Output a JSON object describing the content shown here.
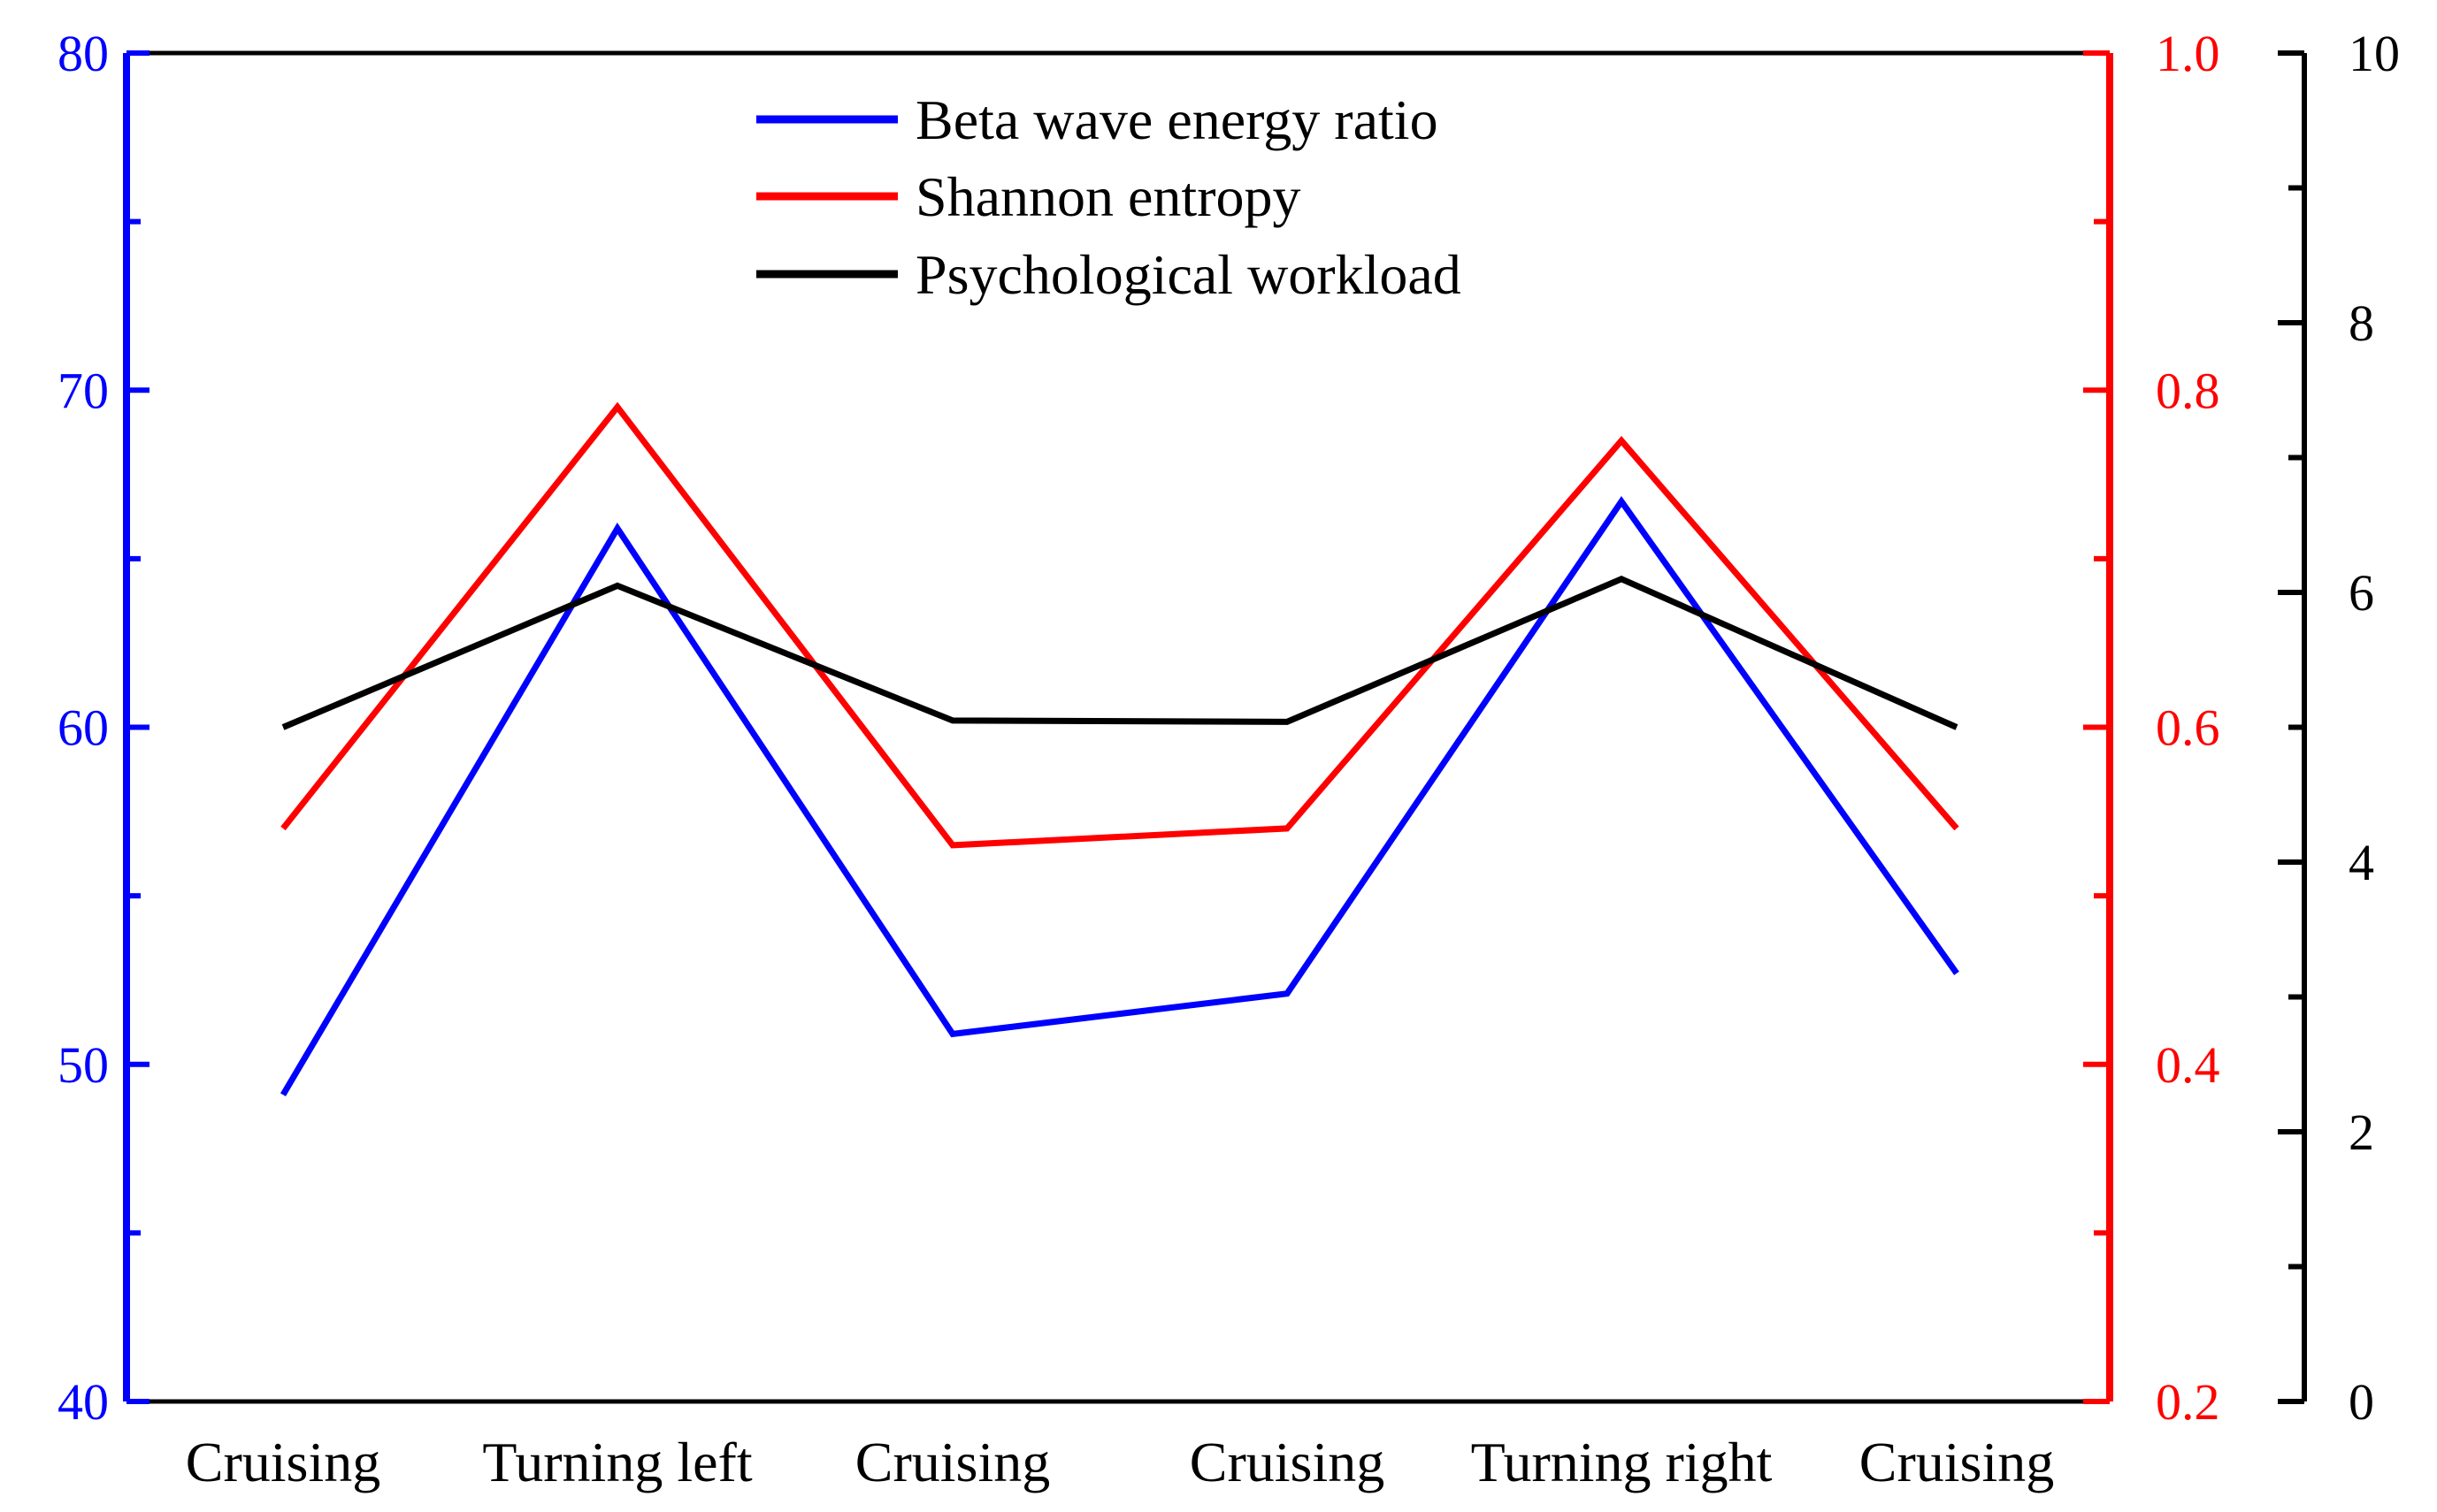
{
  "chart_data": {
    "type": "line",
    "title": "",
    "categories": [
      "Cruising",
      "Turning left",
      "Cruising",
      "Cruising",
      "Turning right",
      "Cruising"
    ],
    "axes": {
      "left": {
        "color": "#0000ff",
        "ylim": [
          40,
          80
        ],
        "major_ticks": [
          40,
          50,
          60,
          70,
          80
        ],
        "tick_labels": [
          "40",
          "50",
          "60",
          "70",
          "80"
        ]
      },
      "mid": {
        "color": "#ff0000",
        "ylim": [
          0.2,
          1.0
        ],
        "major_ticks": [
          0.2,
          0.4,
          0.6,
          0.8,
          1.0
        ],
        "tick_labels": [
          "0.2",
          "0.4",
          "0.6",
          "0.8",
          "1.0"
        ]
      },
      "right": {
        "color": "#000000",
        "ylim": [
          0,
          10
        ],
        "major_ticks": [
          0,
          2,
          4,
          6,
          8,
          10
        ],
        "tick_labels": [
          "0",
          "2",
          "4",
          "6",
          "8",
          "10"
        ]
      }
    },
    "series": [
      {
        "name": "Beta wave energy ratio",
        "axis": "left",
        "color": "#0000ff",
        "values": [
          49.1,
          65.9,
          50.9,
          52.1,
          66.7,
          52.7
        ]
      },
      {
        "name": "Shannon entropy",
        "axis": "mid",
        "color": "#ff0000",
        "values": [
          0.54,
          0.79,
          0.53,
          0.54,
          0.77,
          0.54
        ]
      },
      {
        "name": "Psychological workload",
        "axis": "right",
        "color": "#000000",
        "values": [
          5.0,
          6.05,
          5.05,
          5.04,
          6.1,
          5.0
        ]
      }
    ],
    "legend": {
      "placement": "top-center"
    },
    "grid": false
  }
}
